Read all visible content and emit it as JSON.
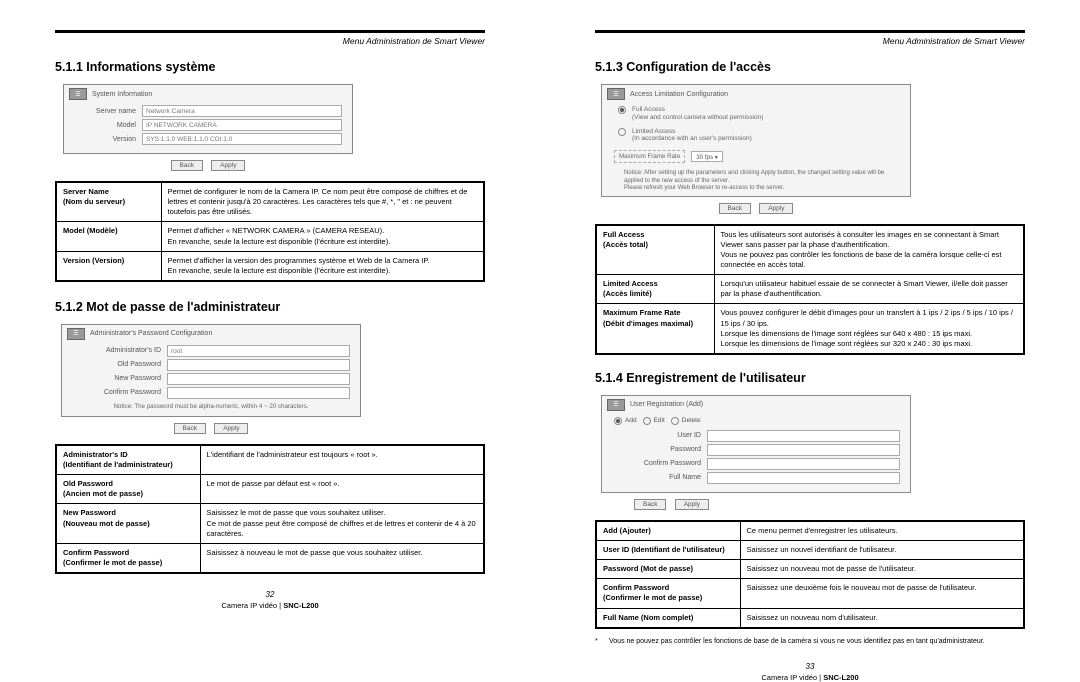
{
  "header": "Menu Administration de Smart Viewer",
  "left": {
    "s1": {
      "title": "5.1.1 Informations système",
      "panel": {
        "heading": "System Information",
        "rows": [
          {
            "label": "Server name",
            "value": "Network Camera"
          },
          {
            "label": "Model",
            "value": "IP NETWORK CAMERA"
          },
          {
            "label": "Version",
            "value": "SYS:1.1.0   WEB:1.1.0   CGI:1.0"
          }
        ],
        "back": "Back",
        "apply": "Apply"
      },
      "defs": [
        {
          "label": "Server Name\n(Nom du serveur)",
          "text": "Permet de configurer le nom de la Camera IP. Ce nom peut être composé de chiffres et de lettres et contenir jusqu'à 20 caractères. Les caractères tels que #, *, \" et : ne peuvent toutefois  pas être utilisés."
        },
        {
          "label": "Model (Modèle)",
          "text": "Permet d'afficher « NETWORK CAMERA » (CAMERA RESEAU).\nEn revanche, seule la lecture est disponible (l'écriture est interdite)."
        },
        {
          "label": "Version (Version)",
          "text": "Permet d'afficher la version des programmes système et Web de la Camera IP.\nEn revanche, seule la lecture est disponible (l'écriture est interdite)."
        }
      ]
    },
    "s2": {
      "title": "5.1.2 Mot de passe de l'administrateur",
      "panel": {
        "heading": "Administrator's Password Configuration",
        "rows": [
          {
            "label": "Administrator's ID",
            "value": "root"
          },
          {
            "label": "Old Password",
            "value": ""
          },
          {
            "label": "New Password",
            "value": ""
          },
          {
            "label": "Confirm Password",
            "value": ""
          }
        ],
        "notice": "Notice: The password must be alpha-numeric, within 4 ~ 20 characters.",
        "back": "Back",
        "apply": "Apply"
      },
      "defs": [
        {
          "label": "Administrator's ID\n(Identifiant de l'administrateur)",
          "text": "L'identifiant de l'administrateur est toujours « root »."
        },
        {
          "label": "Old Password\n(Ancien mot de passe)",
          "text": "Le mot de passe par défaut est « root »."
        },
        {
          "label": "New Password\n(Nouveau mot de passe)",
          "text": "Saisissez le mot de passe que vous souhaitez utiliser.\nCe mot de passe peut être composé de chiffres et de lettres et contenir de 4 à 20 caractères."
        },
        {
          "label": "Confirm Password\n(Confirmer le mot de passe)",
          "text": "Saisissez à nouveau le mot de passe que vous souhaitez utiliser."
        }
      ]
    },
    "pageno": "32",
    "footer_a": "Camera IP vidéo | ",
    "footer_b": "SNC-L200"
  },
  "right": {
    "s3": {
      "title": "5.1.3 Configuration de l'accès",
      "panel": {
        "heading": "Access Limitation Configuration",
        "opt1_label": "Full Access",
        "opt1_sub": "(View and control camera without permission)",
        "opt2_label": "Limited Access",
        "opt2_sub": "(In accordance with an user's permission)",
        "frame_label": "Maximum Frame Rate",
        "frame_value": "30 fps ▾",
        "notice": "Notice: After setting up the parameters and clicking Apply button, the changed setting value will be applied to the new access of the server.\nPlease refresh your Web Browser to re-access to the server.",
        "back": "Back",
        "apply": "Apply"
      },
      "defs": [
        {
          "label": "Full Access\n(Accès total)",
          "text": "Tous les utilisateurs sont autorisés à consulter les images en se connectant à Smart Viewer sans passer par la phase d'authentification.\nVous ne pouvez pas contrôler les fonctions de base de la caméra lorsque celle-ci est connectée en accès total."
        },
        {
          "label": "Limited Access\n(Accès limité)",
          "text": "Lorsqu'un utilisateur habituel essaie de se connecter à Smart Viewer, il/elle doit passer par la phase d'authentification."
        },
        {
          "label": "Maximum Frame Rate\n(Débit d'images maximal)",
          "text": "Vous pouvez configurer le débit d'images pour un transfert à 1 ips / 2 ips / 5 ips / 10 ips / 15 ips / 30 ips.\nLorsque les dimensions de l'image sont réglées sur 640 x 480 : 15 ips maxi.\nLorsque les dimensions de l'image sont réglées sur 320 x 240 : 30 ips maxi."
        }
      ]
    },
    "s4": {
      "title": "5.1.4 Enregistrement de l'utilisateur",
      "panel": {
        "heading": "User Registration (Add)",
        "tabs": {
          "add": "Add",
          "edit": "Edit",
          "delete": "Delete"
        },
        "rows": [
          {
            "label": "User ID",
            "value": ""
          },
          {
            "label": "Password",
            "value": ""
          },
          {
            "label": "Confirm Password",
            "value": ""
          },
          {
            "label": "Full Name",
            "value": ""
          }
        ],
        "back": "Back",
        "apply": "Apply"
      },
      "defs": [
        {
          "label": "Add (Ajouter)",
          "text": "Ce menu permet d'enregistrer les utilisateurs."
        },
        {
          "label": "User ID (Identifiant de l'utilisateur)",
          "text": "Saisissez un nouvel identifiant de l'utilisateur."
        },
        {
          "label": "Password (Mot de passe)",
          "text": "Saisissez un nouveau mot de passe de l'utilisateur."
        },
        {
          "label": "Confirm Password\n(Confirmer le mot de passe)",
          "text": "Saisissez une deuxième fois le nouveau mot de passe de l'utilisateur."
        },
        {
          "label": "Full Name (Nom complet)",
          "text": "Saisissez un nouveau nom d'utilisateur."
        }
      ],
      "footnote": "Vous ne pouvez pas contrôler les fonctions de base de la caméra si vous ne vous identifiez pas en tant qu'administrateur."
    },
    "pageno": "33",
    "footer_a": "Camera IP vidéo | ",
    "footer_b": "SNC-L200"
  }
}
